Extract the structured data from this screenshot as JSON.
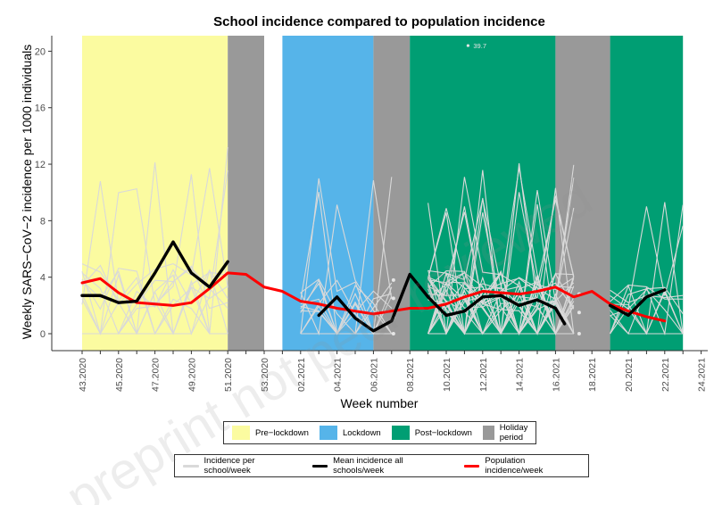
{
  "chart_data": {
    "type": "line",
    "title": "School incidence compared to population incidence",
    "xlabel": "Week number",
    "ylabel": "Weekly SARS−CoV−2 incidence per 1000 individuals",
    "ylim": [
      -1.3,
      21
    ],
    "y_ticks": [
      0,
      4,
      8,
      12,
      16,
      20
    ],
    "week_sequence": [
      "43.2020",
      "44.2020",
      "45.2020",
      "46.2020",
      "47.2020",
      "48.2020",
      "49.2020",
      "50.2020",
      "51.2020",
      "52.2020",
      "53.2020",
      "01.2021",
      "02.2021",
      "03.2021",
      "04.2021",
      "05.2021",
      "06.2021",
      "07.2021",
      "08.2021",
      "09.2021",
      "10.2021",
      "11.2021",
      "12.2021",
      "13.2021",
      "14.2021",
      "15.2021",
      "16.2021",
      "17.2021",
      "18.2021",
      "19.2021",
      "20.2021",
      "21.2021",
      "22.2021",
      "23.2021",
      "24.2021"
    ],
    "x_tick_labels": [
      "43.2020",
      "45.2020",
      "47.2020",
      "49.2020",
      "51.2020",
      "53.2020",
      "02.2021",
      "04.2021",
      "06.2021",
      "08.2021",
      "10.2021",
      "12.2021",
      "14.2021",
      "16.2021",
      "18.2021",
      "20.2021",
      "22.2021",
      "24.2021"
    ],
    "periods": [
      {
        "phase": "Pre−lockdown",
        "from": "43.2020",
        "to": "51.2020"
      },
      {
        "phase": "Holiday period",
        "from": "51.2020",
        "to": "53.2020"
      },
      {
        "phase": "Lockdown",
        "from": "01.2021",
        "to": "06.2021"
      },
      {
        "phase": "Holiday period",
        "from": "06.2021",
        "to": "08.2021"
      },
      {
        "phase": "Post−lockdown",
        "from": "08.2021",
        "to": "16.2021"
      },
      {
        "phase": "Holiday period",
        "from": "16.2021",
        "to": "19.2021"
      },
      {
        "phase": "Post−lockdown",
        "from": "19.2021",
        "to": "23.2021"
      }
    ],
    "series": [
      {
        "name": "Population incidence/week",
        "x": [
          "43.2020",
          "44.2020",
          "45.2020",
          "46.2020",
          "47.2020",
          "48.2020",
          "49.2020",
          "50.2020",
          "51.2020",
          "52.2020",
          "53.2020",
          "01.2021",
          "02.2021",
          "03.2021",
          "04.2021",
          "05.2021",
          "06.2021",
          "07.2021",
          "08.2021",
          "09.2021",
          "10.2021",
          "11.2021",
          "12.2021",
          "13.2021",
          "14.2021",
          "15.2021",
          "16.2021",
          "17.2021",
          "18.2021",
          "19.2021",
          "20.2021",
          "21.2021",
          "22.2021"
        ],
        "values": [
          3.6,
          3.9,
          2.9,
          2.2,
          2.1,
          2.0,
          2.2,
          3.2,
          4.3,
          4.2,
          3.3,
          3.0,
          2.3,
          2.1,
          1.8,
          1.6,
          1.4,
          1.6,
          1.8,
          1.8,
          2.1,
          2.6,
          3.0,
          2.9,
          2.8,
          3.0,
          3.3,
          2.6,
          3.0,
          2.1,
          1.6,
          1.2,
          0.9
        ]
      },
      {
        "name": "Mean incidence all schools/week",
        "x": [
          "43.2020",
          "44.2020",
          "45.2020",
          "46.2020",
          "47.2020",
          "48.2020",
          "49.2020",
          "50.2020",
          "51.2020"
        ],
        "values": [
          2.7,
          2.7,
          2.2,
          2.3,
          4.3,
          6.5,
          4.3,
          3.3,
          5.1
        ]
      },
      {
        "name": "Mean incidence all schools/week",
        "x": [
          "03.2021",
          "04.2021",
          "05.2021",
          "06.2021",
          "07.2021",
          "08.2021",
          "09.2021",
          "10.2021",
          "11.2021",
          "12.2021",
          "13.2021",
          "14.2021",
          "15.2021",
          "16.2021",
          "16.5"
        ],
        "values": [
          1.3,
          2.6,
          1.1,
          0.2,
          0.9,
          4.2,
          2.6,
          1.3,
          1.6,
          2.6,
          2.7,
          2.0,
          2.4,
          1.8,
          0.7
        ]
      },
      {
        "name": "Mean incidence all schools/week",
        "x": [
          "19.2021",
          "20.2021",
          "21.2021",
          "22.2021"
        ],
        "values": [
          2.0,
          1.3,
          2.6,
          3.1
        ]
      }
    ],
    "outlier_annotation": {
      "x": "11.2021",
      "y": 20.4,
      "label": "39.7"
    },
    "legend": {
      "phases": [
        {
          "label": "Pre−lockdown",
          "color": "#fbfba0"
        },
        {
          "label": "Lockdown",
          "color": "#56b4e9"
        },
        {
          "label": "Post−lockdown",
          "color": "#009e73"
        },
        {
          "label": "Holiday period",
          "color": "#999999"
        }
      ],
      "lines": [
        {
          "label": "Incidence per school/week",
          "color": "#d9d9d9"
        },
        {
          "label": "Mean incidence all schools/week",
          "color": "#000000"
        },
        {
          "label": "Population incidence/week",
          "color": "#ff0000"
        }
      ]
    }
  },
  "watermark": "preprint not peer reviewed"
}
